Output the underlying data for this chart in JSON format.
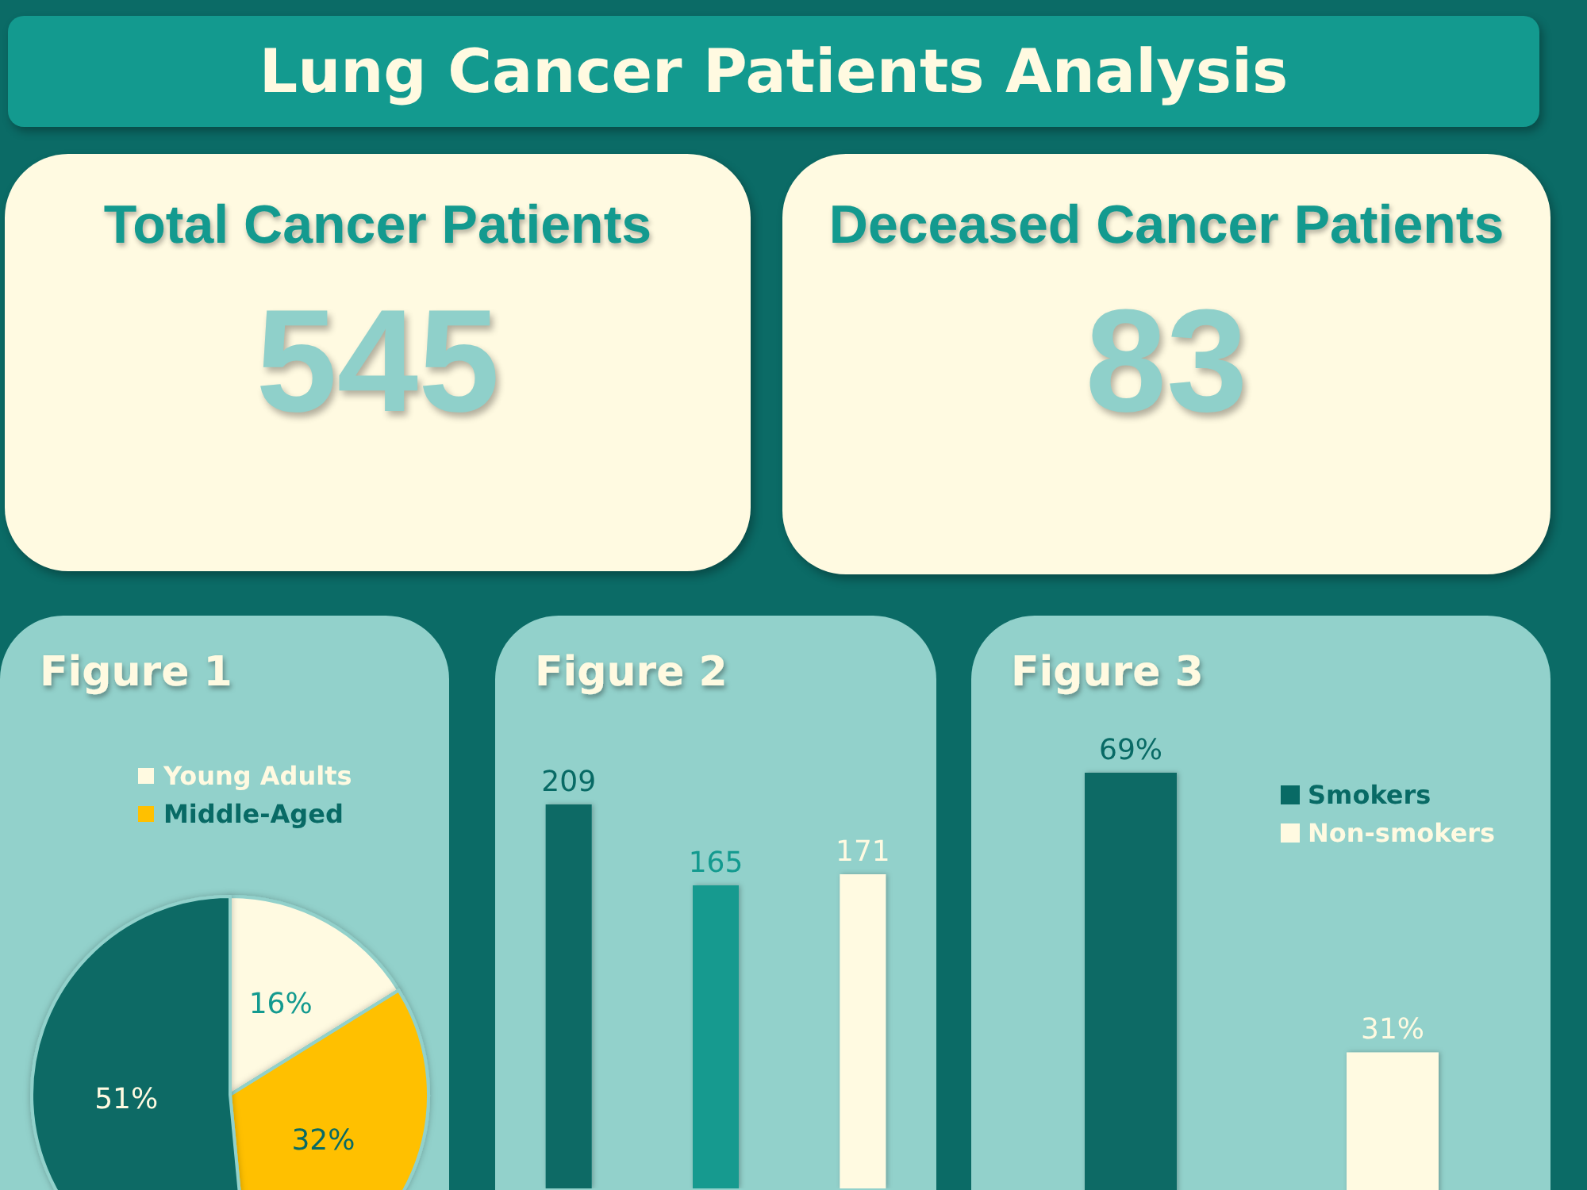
{
  "chart_data": [
    {
      "type": "other",
      "title": "Lung Cancer Patients Analysis"
    },
    {
      "type": "other",
      "title": "Total Cancer Patients",
      "annotations": [
        "545"
      ]
    },
    {
      "type": "other",
      "title": "Deceased Cancer Patients",
      "annotations": [
        "83"
      ]
    },
    {
      "type": "pie",
      "title": "Figure 1",
      "categories": [
        "Young Adults",
        "Middle-Aged",
        null
      ],
      "values": [
        16,
        32,
        51
      ],
      "colors": [
        "#fffae1",
        "#ffc000",
        "#086a65"
      ],
      "value_labels": [
        "16%",
        "32%",
        "51%"
      ],
      "legend": "top"
    },
    {
      "type": "bar",
      "title": "Figure 2",
      "categories": [
        null,
        null,
        null
      ],
      "values": [
        209,
        165,
        171
      ],
      "colors": [
        "#086a65",
        "#139a8f",
        "#fffae1"
      ],
      "data_labels": true
    },
    {
      "type": "bar",
      "title": "Figure 3",
      "categories": [
        null,
        null
      ],
      "stacked": true,
      "legend": "top right",
      "series": [
        {
          "name": "Smokers",
          "color": "#086a65",
          "values": [
            69,
            null
          ],
          "value_labels": [
            "69%",
            null
          ]
        },
        {
          "name": "Non-smokers",
          "color": "#fffae1",
          "values": [
            null,
            31
          ],
          "value_labels": [
            null,
            "31%"
          ]
        }
      ]
    }
  ]
}
